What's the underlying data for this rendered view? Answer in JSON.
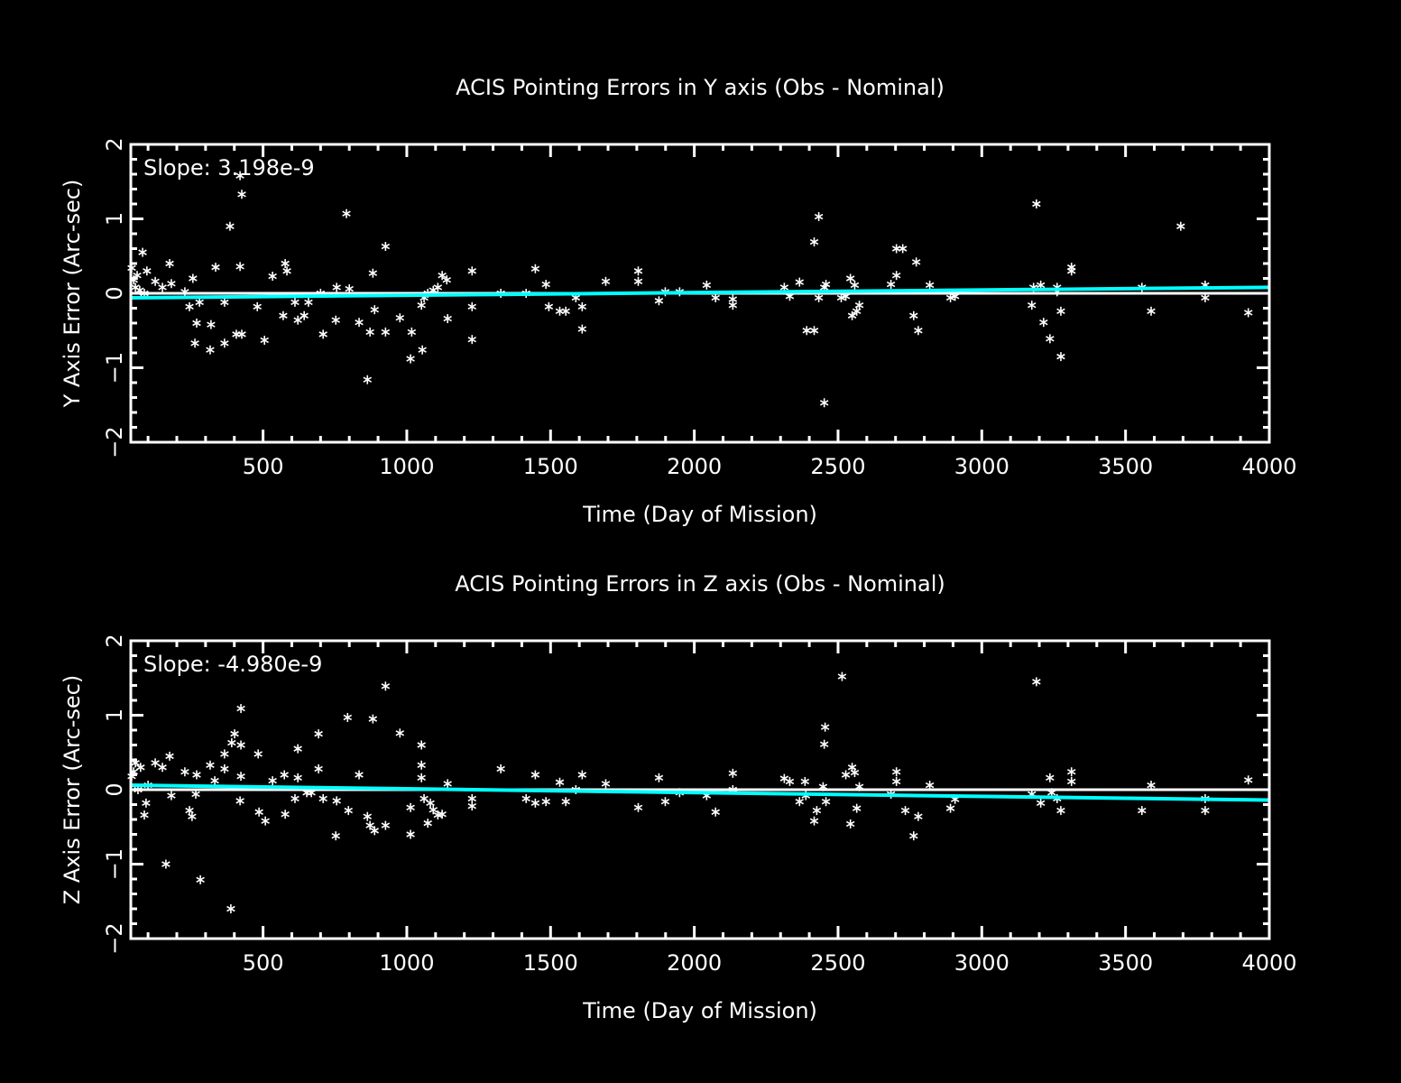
{
  "colors": {
    "background": "#000000",
    "axes": "#ffffff",
    "points": "#ffffff",
    "fit": "#00ffff",
    "zero_line": "#ffffff"
  },
  "chart_data": [
    {
      "type": "scatter",
      "title": "ACIS Pointing Errors in Y axis (Obs - Nominal)",
      "xlabel": "Time (Day of Mission)",
      "ylabel": "Y Axis Error (Arc-sec)",
      "annotation": "Slope: 3.198e-9",
      "xlim": [
        40,
        4000
      ],
      "ylim": [
        -2,
        2
      ],
      "xticks": [
        500,
        1000,
        1500,
        2000,
        2500,
        3000,
        3500,
        4000
      ],
      "yticks": [
        -2,
        -1,
        0,
        1,
        2
      ],
      "marker": "asterisk",
      "fit_line": {
        "x": [
          40,
          4000
        ],
        "y": [
          -0.06,
          0.08
        ]
      },
      "zero_line": 0,
      "points": [
        [
          43,
          0.34
        ],
        [
          50,
          0.18
        ],
        [
          56,
          0.08
        ],
        [
          62,
          0.24
        ],
        [
          71,
          0.04
        ],
        [
          81,
          0.55
        ],
        [
          87,
          0
        ],
        [
          96,
          0.3
        ],
        [
          125,
          0.16
        ],
        [
          150,
          0.08
        ],
        [
          175,
          0.4
        ],
        [
          181,
          0.13
        ],
        [
          228,
          0.02
        ],
        [
          244,
          -0.18
        ],
        [
          256,
          0.2
        ],
        [
          263,
          -0.67
        ],
        [
          269,
          -0.4
        ],
        [
          279,
          -0.12
        ],
        [
          316,
          -0.76
        ],
        [
          319,
          -0.42
        ],
        [
          335,
          0.35
        ],
        [
          366,
          -0.12
        ],
        [
          366,
          -0.67
        ],
        [
          385,
          0.9
        ],
        [
          407,
          -0.55
        ],
        [
          420,
          1.58
        ],
        [
          426,
          1.33
        ],
        [
          420,
          0.36
        ],
        [
          426,
          -0.55
        ],
        [
          480,
          -0.18
        ],
        [
          505,
          -0.63
        ],
        [
          533,
          0.23
        ],
        [
          570,
          -0.3
        ],
        [
          577,
          0.4
        ],
        [
          583,
          0.3
        ],
        [
          611,
          -0.12
        ],
        [
          621,
          -0.36
        ],
        [
          643,
          -0.3
        ],
        [
          658,
          -0.12
        ],
        [
          700,
          0
        ],
        [
          709,
          -0.55
        ],
        [
          753,
          -0.36
        ],
        [
          756,
          0.08
        ],
        [
          790,
          1.07
        ],
        [
          800,
          0.06
        ],
        [
          834,
          -0.39
        ],
        [
          863,
          -1.16
        ],
        [
          872,
          -0.52
        ],
        [
          882,
          0.27
        ],
        [
          888,
          -0.22
        ],
        [
          926,
          0.63
        ],
        [
          926,
          -0.52
        ],
        [
          976,
          -0.33
        ],
        [
          1013,
          -0.88
        ],
        [
          1017,
          -0.52
        ],
        [
          1051,
          -0.16
        ],
        [
          1054,
          -0.76
        ],
        [
          1060,
          -0.06
        ],
        [
          1073,
          0
        ],
        [
          1092,
          0.04
        ],
        [
          1108,
          0.08
        ],
        [
          1123,
          0.24
        ],
        [
          1139,
          0.18
        ],
        [
          1142,
          -0.34
        ],
        [
          1227,
          0.3
        ],
        [
          1227,
          -0.18
        ],
        [
          1227,
          -0.62
        ],
        [
          1327,
          0
        ],
        [
          1415,
          0
        ],
        [
          1447,
          0.33
        ],
        [
          1484,
          0.12
        ],
        [
          1494,
          -0.18
        ],
        [
          1532,
          -0.24
        ],
        [
          1553,
          -0.24
        ],
        [
          1588,
          -0.06
        ],
        [
          1610,
          -0.18
        ],
        [
          1610,
          -0.48
        ],
        [
          1692,
          0.16
        ],
        [
          1805,
          0.3
        ],
        [
          1805,
          0.16
        ],
        [
          1877,
          -0.1
        ],
        [
          1899,
          0.02
        ],
        [
          1949,
          0.02
        ],
        [
          2043,
          0.11
        ],
        [
          2074,
          -0.06
        ],
        [
          2134,
          -0.08
        ],
        [
          2134,
          -0.16
        ],
        [
          2313,
          0.08
        ],
        [
          2332,
          -0.04
        ],
        [
          2366,
          0.15
        ],
        [
          2391,
          -0.5
        ],
        [
          2417,
          0.69
        ],
        [
          2417,
          -0.5
        ],
        [
          2433,
          1.03
        ],
        [
          2433,
          -0.06
        ],
        [
          2452,
          0.08
        ],
        [
          2452,
          -1.47
        ],
        [
          2458,
          0.12
        ],
        [
          2511,
          -0.06
        ],
        [
          2527,
          -0.04
        ],
        [
          2543,
          0.2
        ],
        [
          2549,
          -0.3
        ],
        [
          2558,
          0.11
        ],
        [
          2565,
          -0.24
        ],
        [
          2574,
          -0.16
        ],
        [
          2684,
          0.12
        ],
        [
          2703,
          0.24
        ],
        [
          2703,
          0.6
        ],
        [
          2725,
          0.6
        ],
        [
          2763,
          -0.3
        ],
        [
          2779,
          -0.5
        ],
        [
          2772,
          0.42
        ],
        [
          2819,
          0.11
        ],
        [
          2891,
          -0.06
        ],
        [
          2907,
          -0.04
        ],
        [
          3174,
          -0.16
        ],
        [
          3180,
          0.08
        ],
        [
          3190,
          1.2
        ],
        [
          3205,
          0.11
        ],
        [
          3215,
          -0.39
        ],
        [
          3237,
          -0.61
        ],
        [
          3262,
          0.08
        ],
        [
          3262,
          0.02
        ],
        [
          3275,
          -0.24
        ],
        [
          3275,
          -0.85
        ],
        [
          3312,
          0.3
        ],
        [
          3312,
          0.35
        ],
        [
          3557,
          0.08
        ],
        [
          3589,
          -0.24
        ],
        [
          3692,
          0.9
        ],
        [
          3777,
          0.11
        ],
        [
          3777,
          -0.06
        ],
        [
          3927,
          -0.26
        ]
      ]
    },
    {
      "type": "scatter",
      "title": "ACIS Pointing Errors in  Z axis (Obs - Nominal)",
      "xlabel": "Time (Day of Mission)",
      "ylabel": "Z Axis Error (Arc-sec)",
      "annotation": "Slope: -4.980e-9",
      "xlim": [
        40,
        4000
      ],
      "ylim": [
        -2,
        2
      ],
      "xticks": [
        500,
        1000,
        1500,
        2000,
        2500,
        3000,
        3500,
        4000
      ],
      "yticks": [
        -2,
        -1,
        0,
        1,
        2
      ],
      "marker": "asterisk",
      "fit_line": {
        "x": [
          40,
          4000
        ],
        "y": [
          0.06,
          -0.14
        ]
      },
      "zero_line": 0,
      "points": [
        [
          43,
          0.18
        ],
        [
          50,
          0.24
        ],
        [
          56,
          0.36
        ],
        [
          65,
          0
        ],
        [
          74,
          0.3
        ],
        [
          87,
          -0.34
        ],
        [
          93,
          -0.18
        ],
        [
          100,
          0.06
        ],
        [
          125,
          0.36
        ],
        [
          150,
          0.3
        ],
        [
          162,
          -1.0
        ],
        [
          175,
          0.45
        ],
        [
          181,
          -0.08
        ],
        [
          228,
          0.24
        ],
        [
          244,
          -0.28
        ],
        [
          253,
          -0.36
        ],
        [
          266,
          -0.06
        ],
        [
          269,
          0.2
        ],
        [
          282,
          -1.21
        ],
        [
          316,
          0.33
        ],
        [
          332,
          0.12
        ],
        [
          366,
          0.48
        ],
        [
          366,
          0.28
        ],
        [
          388,
          -1.6
        ],
        [
          391,
          0.63
        ],
        [
          401,
          0.75
        ],
        [
          423,
          1.09
        ],
        [
          423,
          0.6
        ],
        [
          423,
          0.18
        ],
        [
          420,
          -0.15
        ],
        [
          483,
          0.48
        ],
        [
          486,
          -0.3
        ],
        [
          508,
          -0.42
        ],
        [
          533,
          0.12
        ],
        [
          574,
          0.2
        ],
        [
          577,
          -0.33
        ],
        [
          611,
          -0.12
        ],
        [
          621,
          0.55
        ],
        [
          621,
          0.16
        ],
        [
          652,
          -0.04
        ],
        [
          668,
          -0.04
        ],
        [
          693,
          0.28
        ],
        [
          693,
          0.75
        ],
        [
          709,
          -0.12
        ],
        [
          753,
          -0.62
        ],
        [
          756,
          -0.15
        ],
        [
          794,
          0.97
        ],
        [
          797,
          -0.28
        ],
        [
          834,
          0.2
        ],
        [
          863,
          -0.36
        ],
        [
          872,
          -0.48
        ],
        [
          882,
          0.95
        ],
        [
          888,
          -0.55
        ],
        [
          926,
          1.39
        ],
        [
          926,
          -0.48
        ],
        [
          976,
          0.76
        ],
        [
          1013,
          -0.24
        ],
        [
          1013,
          -0.6
        ],
        [
          1051,
          0.6
        ],
        [
          1051,
          0.33
        ],
        [
          1051,
          0.16
        ],
        [
          1060,
          -0.12
        ],
        [
          1073,
          -0.45
        ],
        [
          1082,
          -0.18
        ],
        [
          1092,
          -0.27
        ],
        [
          1108,
          -0.34
        ],
        [
          1123,
          -0.33
        ],
        [
          1142,
          0.08
        ],
        [
          1227,
          -0.12
        ],
        [
          1227,
          -0.22
        ],
        [
          1327,
          0.28
        ],
        [
          1415,
          -0.12
        ],
        [
          1447,
          0.2
        ],
        [
          1447,
          -0.18
        ],
        [
          1484,
          -0.16
        ],
        [
          1532,
          0.1
        ],
        [
          1553,
          -0.16
        ],
        [
          1588,
          0
        ],
        [
          1610,
          0.2
        ],
        [
          1692,
          0.08
        ],
        [
          1805,
          -0.24
        ],
        [
          1877,
          0.16
        ],
        [
          1899,
          -0.16
        ],
        [
          1949,
          -0.04
        ],
        [
          2043,
          -0.08
        ],
        [
          2074,
          -0.3
        ],
        [
          2134,
          0.22
        ],
        [
          2134,
          0
        ],
        [
          2313,
          0.15
        ],
        [
          2332,
          0.11
        ],
        [
          2366,
          -0.16
        ],
        [
          2385,
          0.11
        ],
        [
          2388,
          -0.08
        ],
        [
          2417,
          -0.42
        ],
        [
          2426,
          -0.28
        ],
        [
          2448,
          0.04
        ],
        [
          2452,
          0.61
        ],
        [
          2455,
          0.84
        ],
        [
          2458,
          -0.16
        ],
        [
          2514,
          1.52
        ],
        [
          2527,
          0.2
        ],
        [
          2543,
          -0.46
        ],
        [
          2549,
          0.3
        ],
        [
          2558,
          0.23
        ],
        [
          2565,
          -0.25
        ],
        [
          2574,
          0.04
        ],
        [
          2684,
          -0.06
        ],
        [
          2703,
          0.24
        ],
        [
          2703,
          0.11
        ],
        [
          2734,
          -0.28
        ],
        [
          2763,
          -0.62
        ],
        [
          2779,
          -0.36
        ],
        [
          2819,
          0.06
        ],
        [
          2891,
          -0.25
        ],
        [
          2907,
          -0.13
        ],
        [
          3174,
          -0.06
        ],
        [
          3190,
          1.45
        ],
        [
          3205,
          -0.18
        ],
        [
          3237,
          0.16
        ],
        [
          3243,
          -0.04
        ],
        [
          3262,
          -0.12
        ],
        [
          3275,
          -0.28
        ],
        [
          3312,
          0.24
        ],
        [
          3312,
          0.11
        ],
        [
          3557,
          -0.28
        ],
        [
          3589,
          0.06
        ],
        [
          3777,
          -0.12
        ],
        [
          3777,
          -0.28
        ],
        [
          3927,
          0.13
        ]
      ]
    }
  ]
}
